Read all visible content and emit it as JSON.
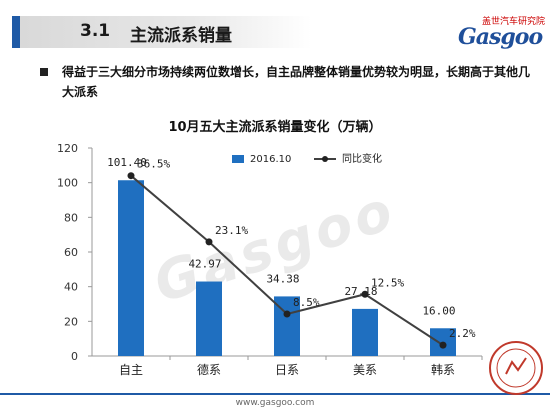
{
  "header": {
    "section_number": "3.1",
    "section_title": "主流派系销量",
    "brand_cn": "盖世汽车研究院",
    "brand_en": "Gasgoo"
  },
  "summary": "得益于三大细分市场持续两位数增长，自主品牌整体销量优势较为明显，长期高于其他几大派系",
  "footer_url": "www.gasgoo.com",
  "colors": {
    "bar": "#1f6fc0",
    "line": "#404040",
    "accent": "#1f5aa6"
  },
  "chart_data": {
    "type": "bar",
    "title": "10月五大主流派系销量变化（万辆）",
    "categories": [
      "自主",
      "德系",
      "日系",
      "美系",
      "韩系"
    ],
    "series": [
      {
        "name": "2016.10",
        "type": "bar",
        "axis": "left",
        "values": [
          101.4,
          42.97,
          34.38,
          27.18,
          16.0
        ],
        "labels": [
          "101.40",
          "42.97",
          "34.38",
          "27.18",
          "16.00"
        ]
      },
      {
        "name": "同比变化",
        "type": "line",
        "axis": "right",
        "values": [
          36.5,
          23.1,
          8.5,
          12.5,
          2.2
        ],
        "labels": [
          "36.5%",
          "23.1%",
          "8.5%",
          "12.5%",
          "2.2%"
        ]
      }
    ],
    "ylim": [
      0,
      120
    ],
    "yticks": [
      0,
      20,
      40,
      60,
      80,
      100,
      120
    ],
    "legend_position": "top-right",
    "grid": false
  }
}
